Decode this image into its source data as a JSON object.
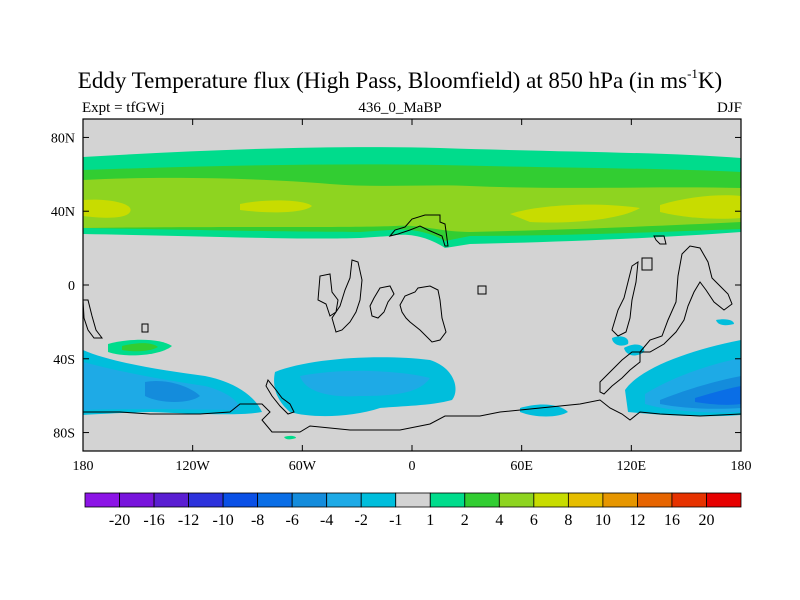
{
  "header": {
    "title_main": "Eddy Temperature flux (High Pass, Bloomfield) at 850 hPa (in ms",
    "title_sup": "-1",
    "title_end": "K)",
    "expt": "Expt = tfGWj",
    "run": "436_0_MaBP",
    "season": "DJF"
  },
  "map": {
    "lon_range": [
      -180,
      180
    ],
    "lat_range": [
      -90,
      90
    ],
    "x_ticks": [
      {
        "lon": -180,
        "label": "180"
      },
      {
        "lon": -120,
        "label": "120W"
      },
      {
        "lon": -60,
        "label": "60W"
      },
      {
        "lon": 0,
        "label": "0"
      },
      {
        "lon": 60,
        "label": "60E"
      },
      {
        "lon": 120,
        "label": "120E"
      },
      {
        "lon": 180,
        "label": "180"
      }
    ],
    "y_ticks": [
      {
        "lat": 80,
        "label": "80N"
      },
      {
        "lat": 40,
        "label": "40N"
      },
      {
        "lat": 0,
        "label": "0"
      },
      {
        "lat": -40,
        "label": "40S"
      },
      {
        "lat": -80,
        "label": "80S"
      }
    ],
    "colors": {
      "background": "#d3d3d3",
      "pos_1_2": "#00dc8c",
      "pos_2_4": "#32cd32",
      "pos_4_6": "#8ed420",
      "pos_6_8": "#c8dc00",
      "neg_m2_m1": "#00bedc",
      "neg_m4_m2": "#1eaae6",
      "neg_m6_m4": "#148cdc",
      "neg_m8_m6": "#0a6ee6",
      "coast": "#000000"
    }
  },
  "colorbar": {
    "bins": [
      {
        "color": "#8c14e6"
      },
      {
        "color": "#7814dc"
      },
      {
        "color": "#5a1ed2"
      },
      {
        "color": "#2d32dc"
      },
      {
        "color": "#0a50e6"
      },
      {
        "color": "#0a6ee6"
      },
      {
        "color": "#148cdc"
      },
      {
        "color": "#1eaae6"
      },
      {
        "color": "#00bedc"
      },
      {
        "color": "#d3d3d3"
      },
      {
        "color": "#00dc8c"
      },
      {
        "color": "#32cd32"
      },
      {
        "color": "#8ed420"
      },
      {
        "color": "#c8dc00"
      },
      {
        "color": "#e6be00"
      },
      {
        "color": "#e69600"
      },
      {
        "color": "#e66400"
      },
      {
        "color": "#e63200"
      },
      {
        "color": "#e60000"
      }
    ],
    "labels": [
      "-20",
      "-16",
      "-12",
      "-10",
      "-8",
      "-6",
      "-4",
      "-2",
      "-1",
      "1",
      "2",
      "4",
      "6",
      "8",
      "10",
      "12",
      "16",
      "20"
    ]
  }
}
